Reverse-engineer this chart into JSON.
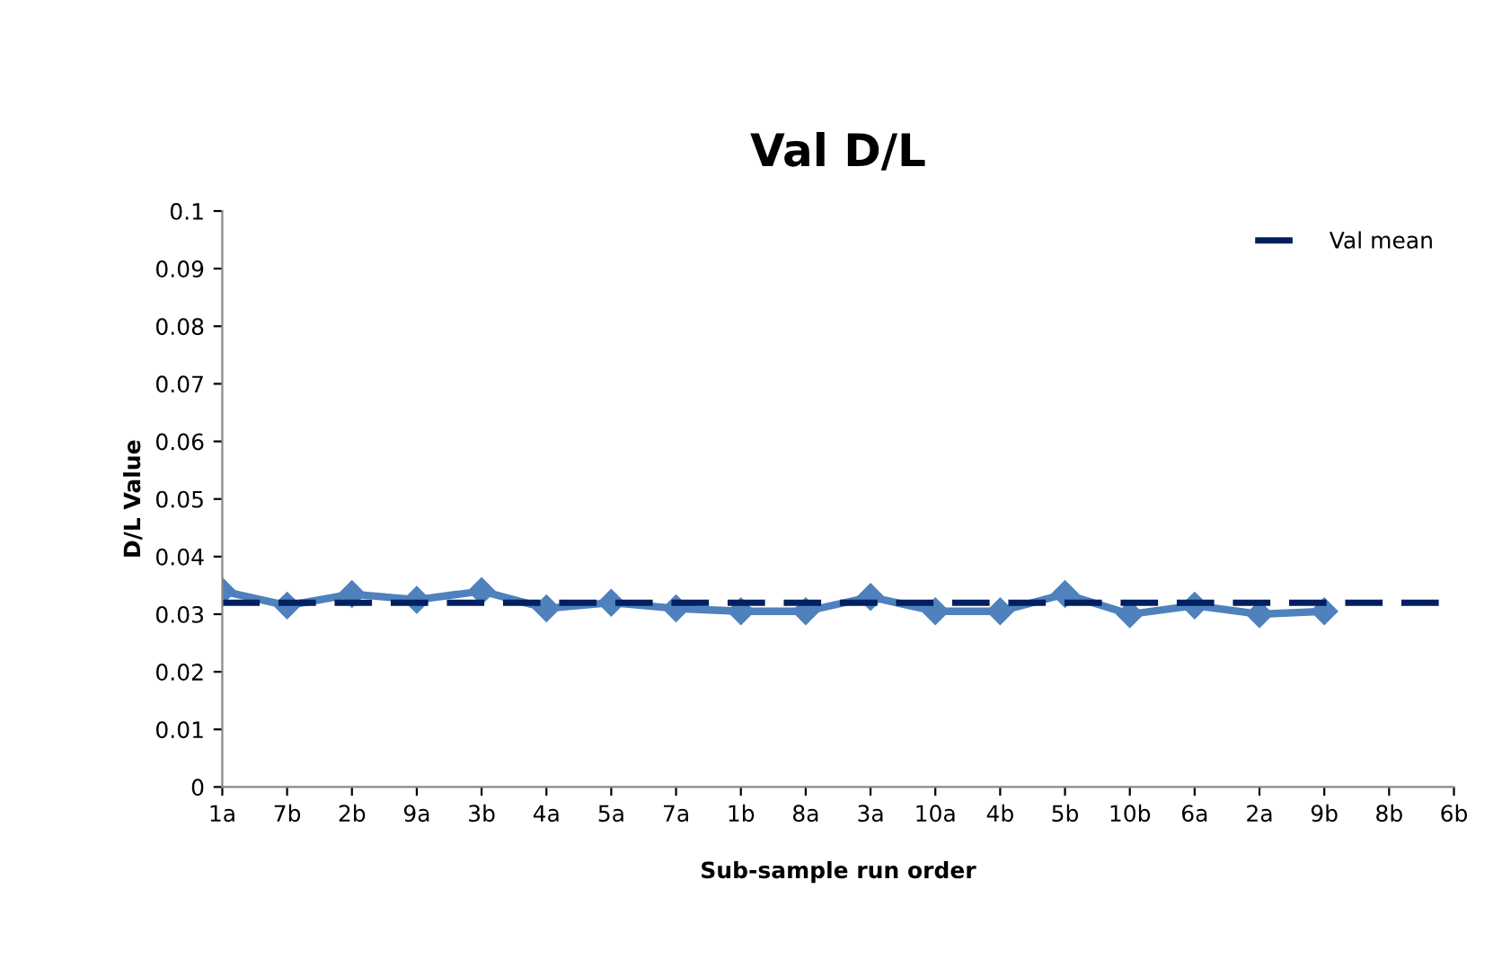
{
  "chart_data": {
    "type": "line",
    "title": "Val D/L",
    "xlabel": "Sub-sample run order",
    "ylabel": "D/L Value",
    "categories": [
      "1a",
      "7b",
      "2b",
      "9a",
      "3b",
      "4a",
      "5a",
      "7a",
      "1b",
      "8a",
      "3a",
      "10a",
      "4b",
      "5b",
      "10b",
      "6a",
      "2a",
      "9b",
      "8b",
      "6b"
    ],
    "series": [
      {
        "color": "#4f81bd",
        "values": [
          0.034,
          0.0315,
          0.0335,
          0.0325,
          0.034,
          0.031,
          0.032,
          0.031,
          0.0305,
          0.0305,
          0.033,
          0.0305,
          0.0305,
          0.0335,
          0.03,
          0.0315,
          0.03,
          0.0305,
          null,
          null
        ]
      }
    ],
    "marker": "diamond",
    "line_style": "solid",
    "ref_lines": [
      {
        "axis": "y",
        "value": 0.032,
        "label": "Val mean",
        "color": "#002060",
        "line_style": "dashed"
      }
    ],
    "ylim": [
      0,
      0.1
    ],
    "yticks": [
      0,
      0.01,
      0.02,
      0.03,
      0.04,
      0.05,
      0.06,
      0.07,
      0.08,
      0.09,
      0.1
    ],
    "grid": false,
    "legend": "top right"
  }
}
